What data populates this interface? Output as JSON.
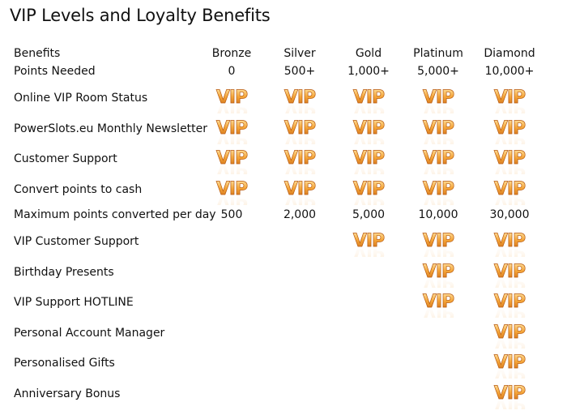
{
  "title": "VIP Levels and Loyalty Benefits",
  "colors": {
    "vip_gold_top": "#ffcf7a",
    "vip_gold_bottom": "#d8761a",
    "vip_outline": "#b85a10"
  },
  "icons": {
    "badge": "vip-badge-icon",
    "badge_text": "VIP"
  },
  "header": {
    "label": "Benefits",
    "levels": [
      "Bronze",
      "Silver",
      "Gold",
      "Platinum",
      "Diamond"
    ]
  },
  "rows": [
    {
      "label": "Points Needed",
      "values": [
        "0",
        "500+",
        "1,000+",
        "5,000+",
        "10,000+"
      ]
    },
    {
      "label": "Online VIP Room Status",
      "vip": [
        true,
        true,
        true,
        true,
        true
      ]
    },
    {
      "label": "PowerSlots.eu Monthly Newsletter",
      "vip": [
        true,
        true,
        true,
        true,
        true
      ]
    },
    {
      "label": "Customer Support",
      "vip": [
        true,
        true,
        true,
        true,
        true
      ]
    },
    {
      "label": "Convert points to cash",
      "vip": [
        true,
        true,
        true,
        true,
        true
      ]
    },
    {
      "label": "Maximum points converted per day",
      "values": [
        "500",
        "2,000",
        "5,000",
        "10,000",
        "30,000"
      ]
    },
    {
      "label": "VIP Customer Support",
      "vip": [
        false,
        false,
        true,
        true,
        true
      ]
    },
    {
      "label": "Birthday Presents",
      "vip": [
        false,
        false,
        false,
        true,
        true
      ]
    },
    {
      "label": "VIP Support HOTLINE",
      "vip": [
        false,
        false,
        false,
        true,
        true
      ]
    },
    {
      "label": "Personal Account Manager",
      "vip": [
        false,
        false,
        false,
        false,
        true
      ]
    },
    {
      "label": "Personalised Gifts",
      "vip": [
        false,
        false,
        false,
        false,
        true
      ]
    },
    {
      "label": "Anniversary Bonus",
      "vip": [
        false,
        false,
        false,
        false,
        true
      ]
    }
  ]
}
